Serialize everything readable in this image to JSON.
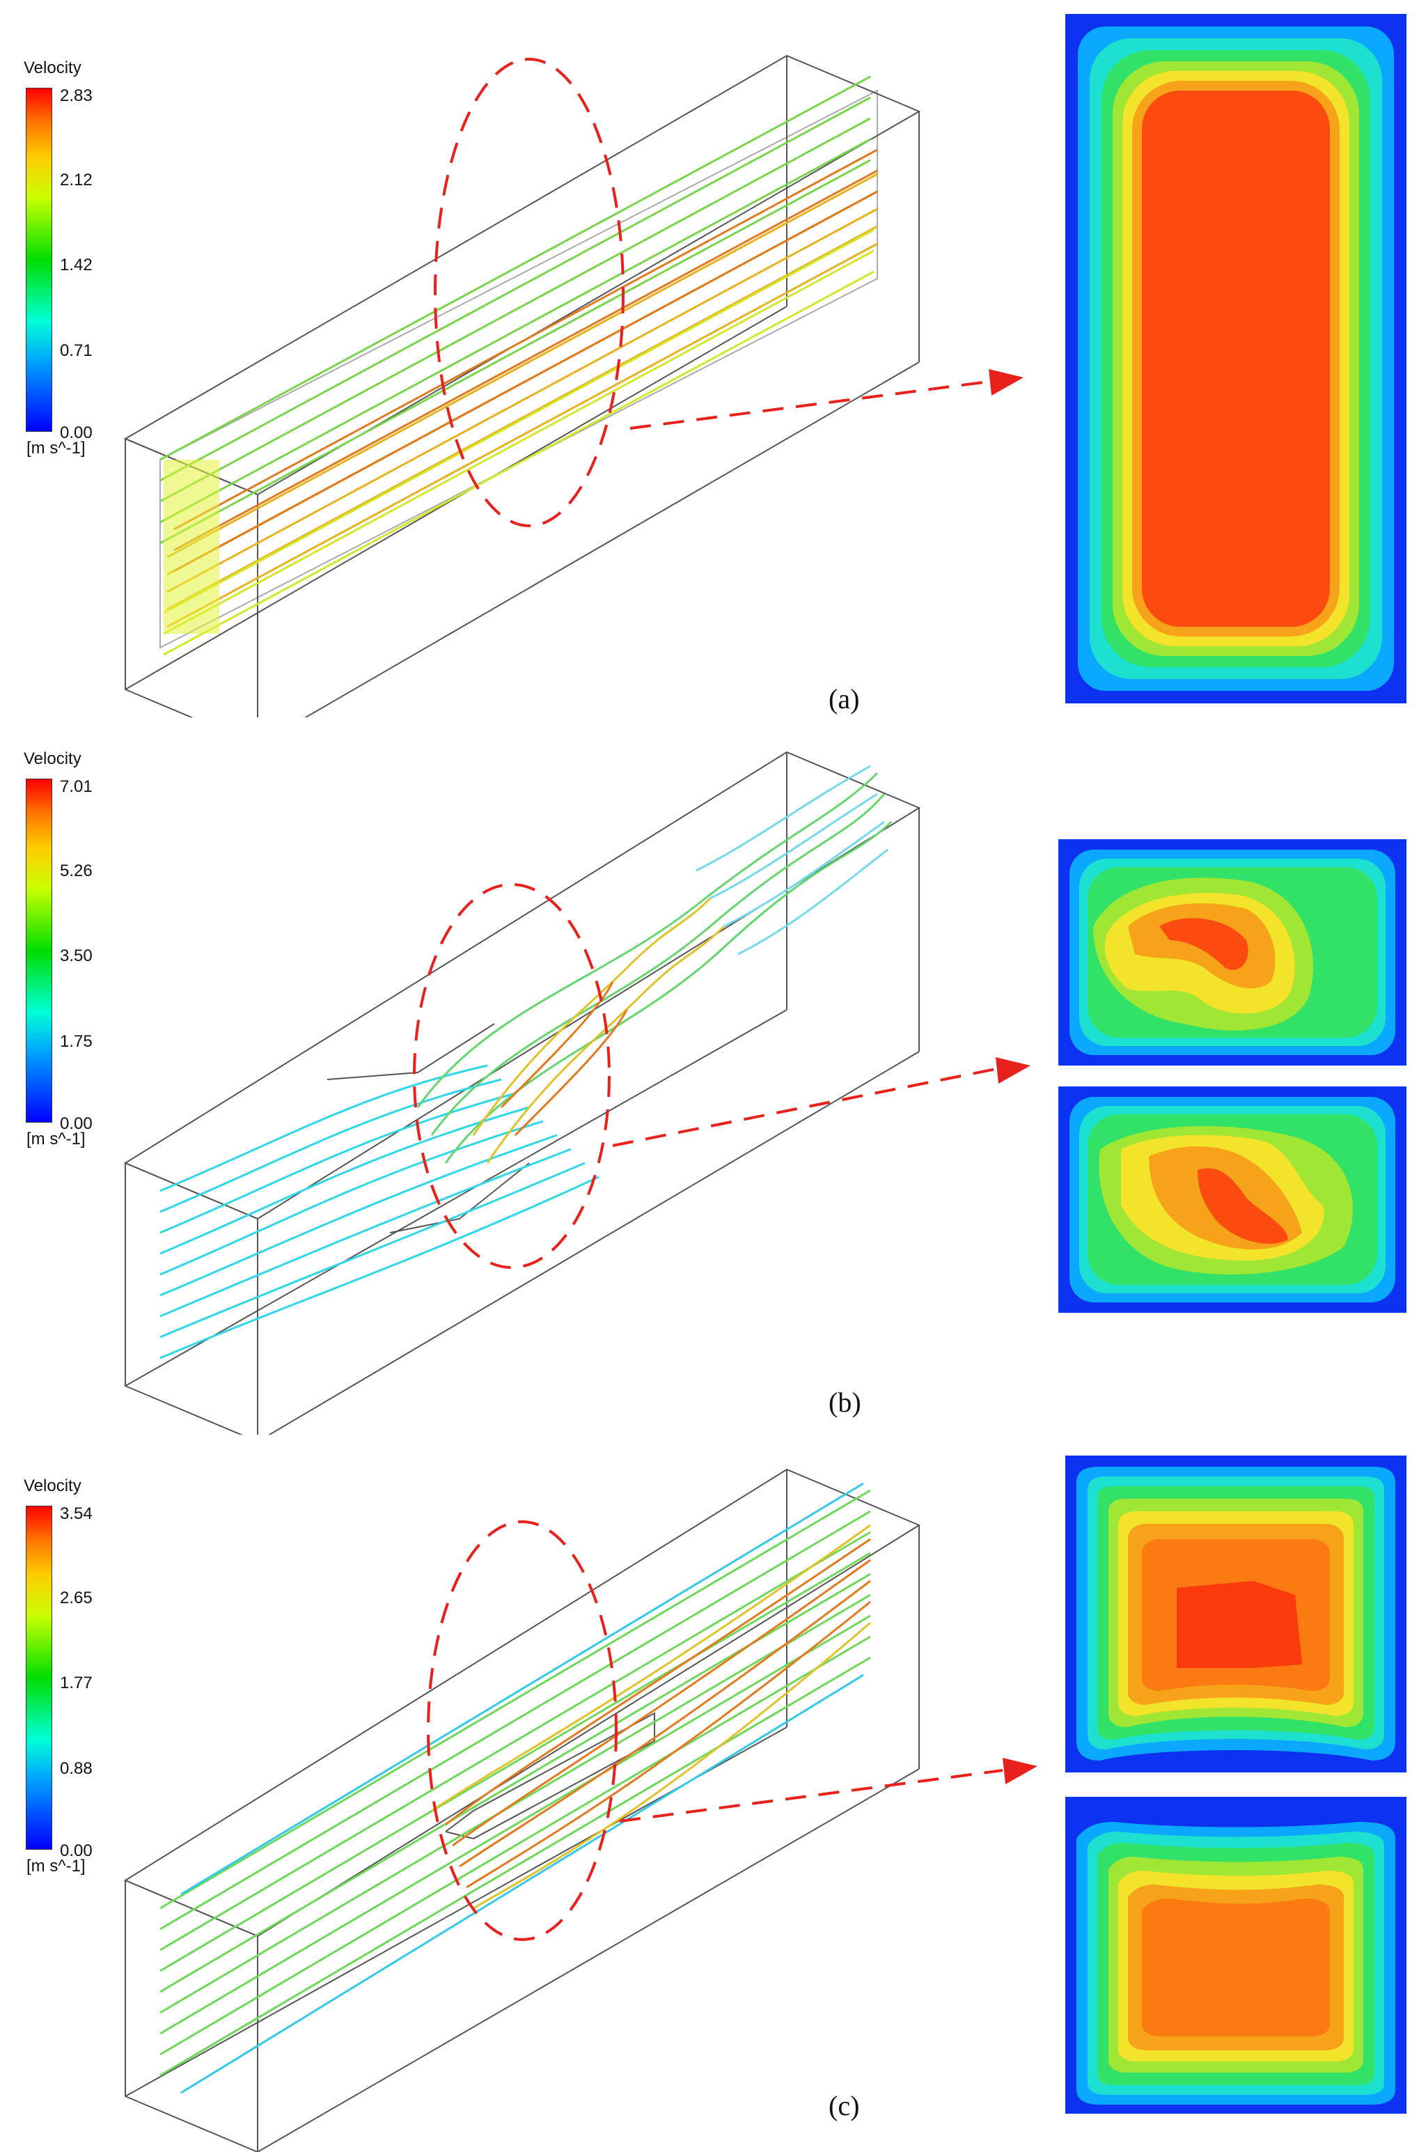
{
  "panels": [
    {
      "caption": "(a)",
      "legend": {
        "title": "Velocity",
        "unit": "[m s^-1]",
        "ticks": [
          "2.83",
          "2.12",
          "1.42",
          "0.71",
          "0.00"
        ]
      }
    },
    {
      "caption": "(b)",
      "legend": {
        "title": "Velocity",
        "unit": "[m s^-1]",
        "ticks": [
          "7.01",
          "5.26",
          "3.50",
          "1.75",
          "0.00"
        ]
      }
    },
    {
      "caption": "(c)",
      "legend": {
        "title": "Velocity",
        "unit": "[m s^-1]",
        "ticks": [
          "3.54",
          "2.65",
          "1.77",
          "0.88",
          "0.00"
        ]
      }
    }
  ],
  "colors": {
    "annotation": "#e8211c",
    "wire": "#555555"
  }
}
